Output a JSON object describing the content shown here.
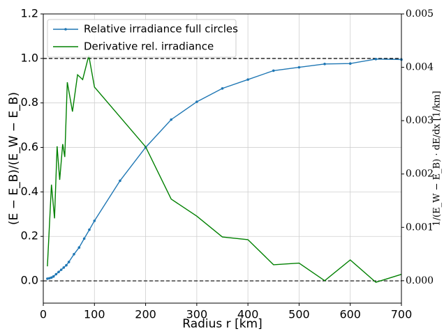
{
  "chart_data": {
    "type": "line",
    "xlabel": "Radius r [km]",
    "ylabel": "(E − E_B)/(E_W − E_B)",
    "y2label": "1/(E_W − E_B) · dE/dx [1/km]",
    "xlim": [
      0,
      700
    ],
    "xticks": [
      0,
      100,
      200,
      300,
      400,
      500,
      600,
      700
    ],
    "ylim": [
      -0.1,
      1.2
    ],
    "yticks": [
      {
        "value": 0,
        "label": "0.0"
      },
      0.2,
      0.4,
      0.6,
      0.8,
      {
        "value": 1,
        "label": "1.0"
      },
      1.2
    ],
    "y2lim": [
      -0.00042,
      0.005
    ],
    "y2ticks": [
      {
        "value": 0,
        "label": "0.000"
      },
      {
        "value": 0.001,
        "label": "0.001"
      },
      {
        "value": 0.002,
        "label": "0.002"
      },
      {
        "value": 0.003,
        "label": "0.003"
      },
      {
        "value": 0.004,
        "label": "0.004"
      },
      {
        "value": 0.005,
        "label": "0.005"
      }
    ],
    "hlines": [
      0,
      1
    ],
    "grid": true,
    "legend": "upper left",
    "series": [
      {
        "name": "Relative irradiance full circles",
        "color": "#1f77b4",
        "markers": true,
        "x": [
          8,
          12,
          16,
          20,
          25,
          30,
          35,
          40,
          45,
          50,
          60,
          70,
          80,
          90,
          100,
          150,
          200,
          250,
          300,
          350,
          400,
          450,
          500,
          550,
          600,
          650,
          700
        ],
        "values": [
          0.01,
          0.012,
          0.015,
          0.02,
          0.03,
          0.04,
          0.05,
          0.06,
          0.07,
          0.085,
          0.12,
          0.15,
          0.19,
          0.23,
          0.27,
          0.45,
          0.6,
          0.725,
          0.805,
          0.865,
          0.905,
          0.945,
          0.96,
          0.975,
          0.977,
          0.997,
          0.995
        ]
      },
      {
        "name": "Derivative rel. irradiance",
        "color": "#008000",
        "axis": "y2",
        "markers": false,
        "x": [
          8,
          16,
          22,
          27,
          32,
          38,
          42,
          47,
          57,
          67,
          77,
          89,
          100,
          200,
          250,
          300,
          350,
          400,
          450,
          500,
          550,
          600,
          650,
          700
        ],
        "values": [
          0.00027,
          0.0018,
          0.00117,
          0.00252,
          0.00189,
          0.00256,
          0.00232,
          0.00372,
          0.00317,
          0.00386,
          0.00377,
          0.00422,
          0.00363,
          0.00251,
          0.00153,
          0.00121,
          0.00082,
          0.00077,
          0.0003,
          0.00033,
          0.0,
          0.00039,
          -3e-05,
          0.00012
        ]
      }
    ]
  }
}
